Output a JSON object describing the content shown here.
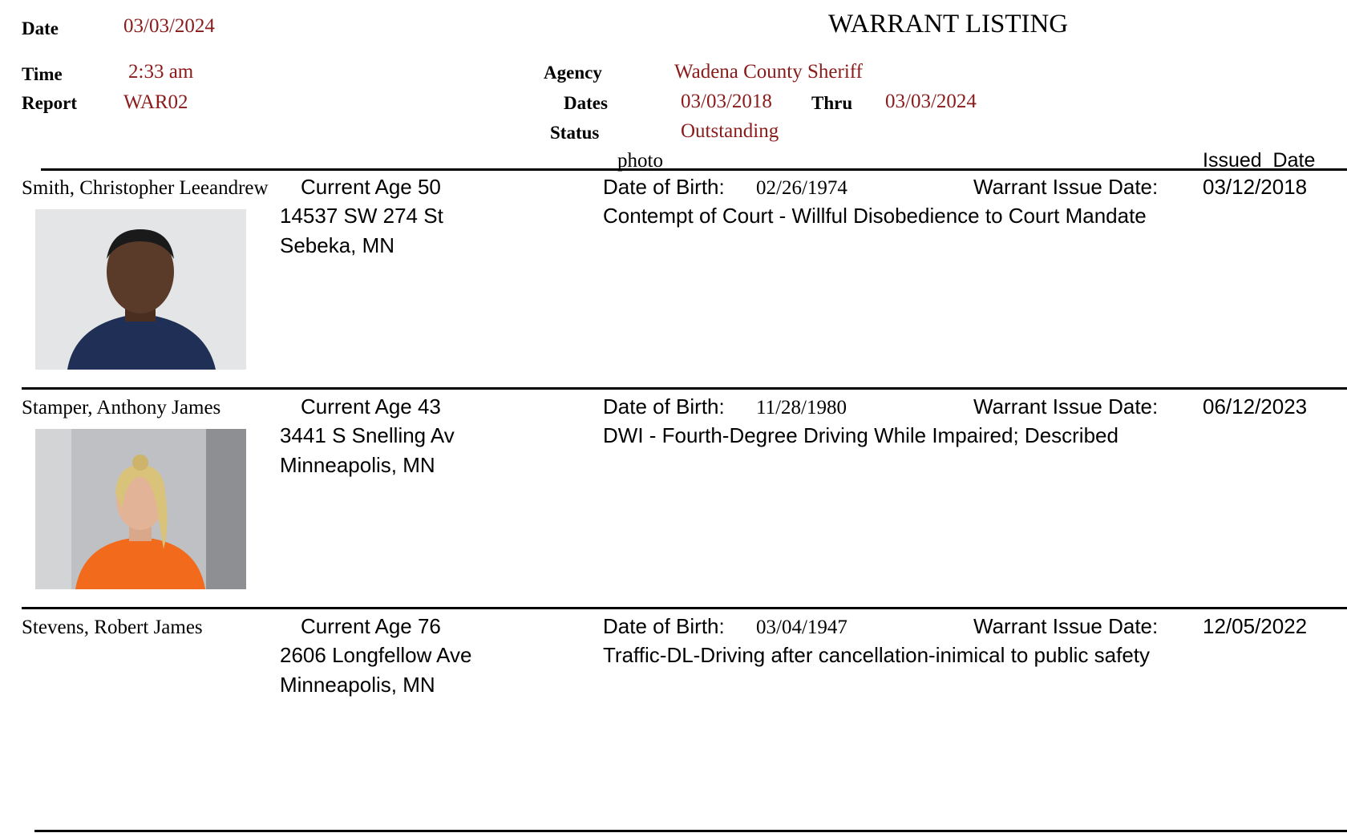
{
  "header": {
    "date_label": "Date",
    "date_value": "03/03/2024",
    "time_label": "Time",
    "time_value": "2:33 am",
    "report_label": "Report",
    "report_value": "WAR02",
    "title": "WARRANT LISTING",
    "agency_label": "Agency",
    "agency_value": "Wadena County Sheriff",
    "dates_label": "Dates",
    "dates_from": "03/03/2018",
    "thru_label": "Thru",
    "dates_to": "03/03/2024",
    "status_label": "Status",
    "status_value": "Outstanding",
    "colors": {
      "value": "#8b1a1a",
      "label": "#000000"
    }
  },
  "columns": {
    "photo": "photo",
    "issued_date": "Issued  Date"
  },
  "records": [
    {
      "name": "Smith, Christopher Leeandrew",
      "age": "Current Age 50",
      "address1": "14537 SW 274 St",
      "address2": "Sebeka, MN",
      "dob_label": "Date of Birth:",
      "dob": "02/26/1974",
      "issue_label": "Warrant Issue Date:",
      "issue_date": "03/12/2018",
      "charge": "Contempt of Court - Willful Disobedience to Court Mandate",
      "photo": "mugshot-male"
    },
    {
      "name": "Stamper, Anthony James",
      "age": "Current Age 43",
      "address1": "3441 S Snelling Av",
      "address2": "Minneapolis, MN",
      "dob_label": "Date of Birth:",
      "dob": "11/28/1980",
      "issue_label": "Warrant Issue Date:",
      "issue_date": "06/12/2023",
      "charge": "DWI - Fourth-Degree Driving While Impaired; Described",
      "photo": "mugshot-female"
    },
    {
      "name": "Stevens, Robert James",
      "age": "Current Age 76",
      "address1": "2606  Longfellow Ave",
      "address2": "Minneapolis, MN",
      "dob_label": "Date of Birth:",
      "dob": "03/04/1947",
      "issue_label": "Warrant Issue Date:",
      "issue_date": "12/05/2022",
      "charge": "Traffic-DL-Driving after cancellation-inimical to public safety",
      "photo": ""
    }
  ]
}
